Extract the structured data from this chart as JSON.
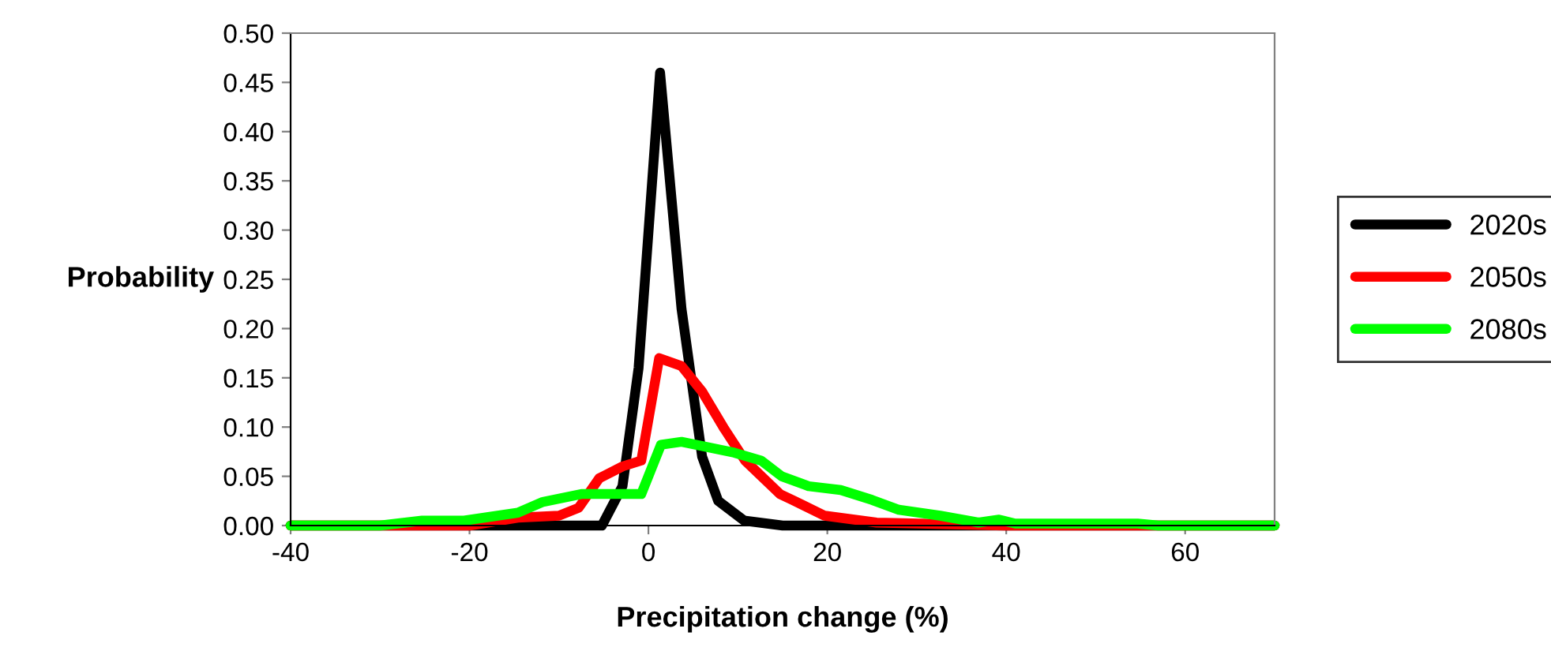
{
  "chart_data": {
    "type": "line",
    "xlabel": "Precipitation change (%)",
    "ylabel": "Probability",
    "xlim": [
      -40,
      70
    ],
    "xticks": [
      -40,
      -20,
      0,
      20,
      40,
      60
    ],
    "ylim": [
      0,
      0.5
    ],
    "yticks": [
      {
        "value": 0,
        "label": "0.00"
      },
      {
        "value": 0.05,
        "label": "0.05"
      },
      {
        "value": 0.1,
        "label": "0.10"
      },
      {
        "value": 0.15,
        "label": "0.15"
      },
      {
        "value": 0.2,
        "label": "0.20"
      },
      {
        "value": 0.25,
        "label": "0.25"
      },
      {
        "value": 0.3,
        "label": "0.30"
      },
      {
        "value": 0.35,
        "label": "0.35"
      },
      {
        "value": 0.4,
        "label": "0.40"
      },
      {
        "value": 0.45,
        "label": "0.45"
      },
      {
        "value": 0.5,
        "label": "0.50"
      }
    ],
    "grid": false,
    "legend": "right",
    "marker": "none",
    "line_style": "solid",
    "series": [
      {
        "name": "2020s",
        "color": "#000000",
        "x": [
          -40,
          -10,
          -5.2,
          -2.9,
          -1.1,
          1.3,
          3.7,
          6.0,
          7.8,
          10.7,
          15,
          70
        ],
        "values": [
          0,
          0,
          0,
          0.04,
          0.16,
          0.46,
          0.22,
          0.07,
          0.025,
          0.005,
          0,
          0
        ]
      },
      {
        "name": "2050s",
        "color": "#ff0000",
        "x": [
          -40,
          -20,
          -14.6,
          -10,
          -7.8,
          -5.5,
          -2.9,
          -0.8,
          1.2,
          3.7,
          6.0,
          8.5,
          10.8,
          14.7,
          16.1,
          19.7,
          25.5,
          40,
          70
        ],
        "values": [
          0,
          0,
          0.008,
          0.01,
          0.018,
          0.048,
          0.06,
          0.066,
          0.17,
          0.162,
          0.136,
          0.098,
          0.066,
          0.032,
          0.026,
          0.01,
          0.003,
          0,
          0
        ]
      },
      {
        "name": "2080s",
        "color": "#00ff00",
        "x": [
          -40,
          -30,
          -25.3,
          -20.6,
          -14.6,
          -11.8,
          -7.5,
          -0.8,
          1.4,
          3.7,
          9.6,
          12.6,
          14.9,
          17.9,
          21.5,
          25,
          28,
          32.6,
          36.9,
          39.2,
          41,
          54.7,
          57,
          70
        ],
        "values": [
          0,
          0,
          0.005,
          0.005,
          0.013,
          0.024,
          0.032,
          0.032,
          0.082,
          0.085,
          0.074,
          0.066,
          0.05,
          0.04,
          0.036,
          0.026,
          0.016,
          0.01,
          0.003,
          0.006,
          0.002,
          0.002,
          0,
          0
        ]
      }
    ]
  }
}
